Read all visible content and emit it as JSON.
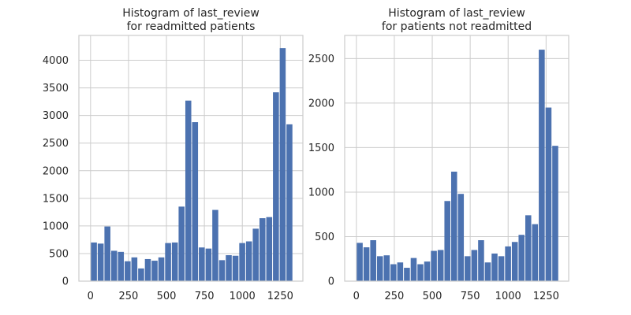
{
  "chart_data": [
    {
      "type": "bar",
      "title": "Histogram of last_review\nfor readmitted patients",
      "xlim": [
        -77,
        1399
      ],
      "ylim": [
        0,
        4450
      ],
      "xticks": [
        0,
        250,
        500,
        750,
        1000,
        1250
      ],
      "yticks": [
        0,
        500,
        1000,
        1500,
        2000,
        2500,
        3000,
        3500,
        4000
      ],
      "bin_edges": [
        0,
        44.4,
        88.8,
        133.3,
        177.7,
        222.1,
        266.5,
        310.9,
        355.4,
        399.8,
        444.2,
        488.6,
        533.0,
        577.5,
        621.9,
        666.3,
        710.7,
        755.1,
        799.6,
        844.0,
        888.4,
        932.8,
        977.2,
        1021.7,
        1066.1,
        1110.5,
        1154.9,
        1199.3,
        1243.8,
        1288.2,
        1332.6
      ],
      "values": [
        700,
        680,
        990,
        550,
        530,
        360,
        430,
        230,
        400,
        370,
        430,
        690,
        700,
        1350,
        3270,
        2880,
        610,
        590,
        1290,
        380,
        470,
        460,
        690,
        720,
        950,
        1140,
        1160,
        3420,
        4220,
        2840
      ],
      "color": "#4c72b0",
      "grid": true,
      "legend": ""
    },
    {
      "type": "bar",
      "title": "Histogram of last_review\nfor patients not readmitted",
      "xlim": [
        -77,
        1399
      ],
      "ylim": [
        0,
        2760
      ],
      "xticks": [
        0,
        250,
        500,
        750,
        1000,
        1250
      ],
      "yticks": [
        0,
        500,
        1000,
        1500,
        2000,
        2500
      ],
      "bin_edges": [
        0,
        44.4,
        88.8,
        133.3,
        177.7,
        222.1,
        266.5,
        310.9,
        355.4,
        399.8,
        444.2,
        488.6,
        533.0,
        577.5,
        621.9,
        666.3,
        710.7,
        755.1,
        799.6,
        844.0,
        888.4,
        932.8,
        977.2,
        1021.7,
        1066.1,
        1110.5,
        1154.9,
        1199.3,
        1243.8,
        1288.2,
        1332.6
      ],
      "values": [
        430,
        380,
        460,
        280,
        290,
        190,
        210,
        150,
        260,
        190,
        220,
        340,
        350,
        900,
        1230,
        980,
        280,
        350,
        460,
        210,
        310,
        280,
        390,
        440,
        520,
        740,
        640,
        2600,
        1950,
        1520
      ],
      "color": "#4c72b0",
      "grid": true,
      "legend": ""
    }
  ]
}
